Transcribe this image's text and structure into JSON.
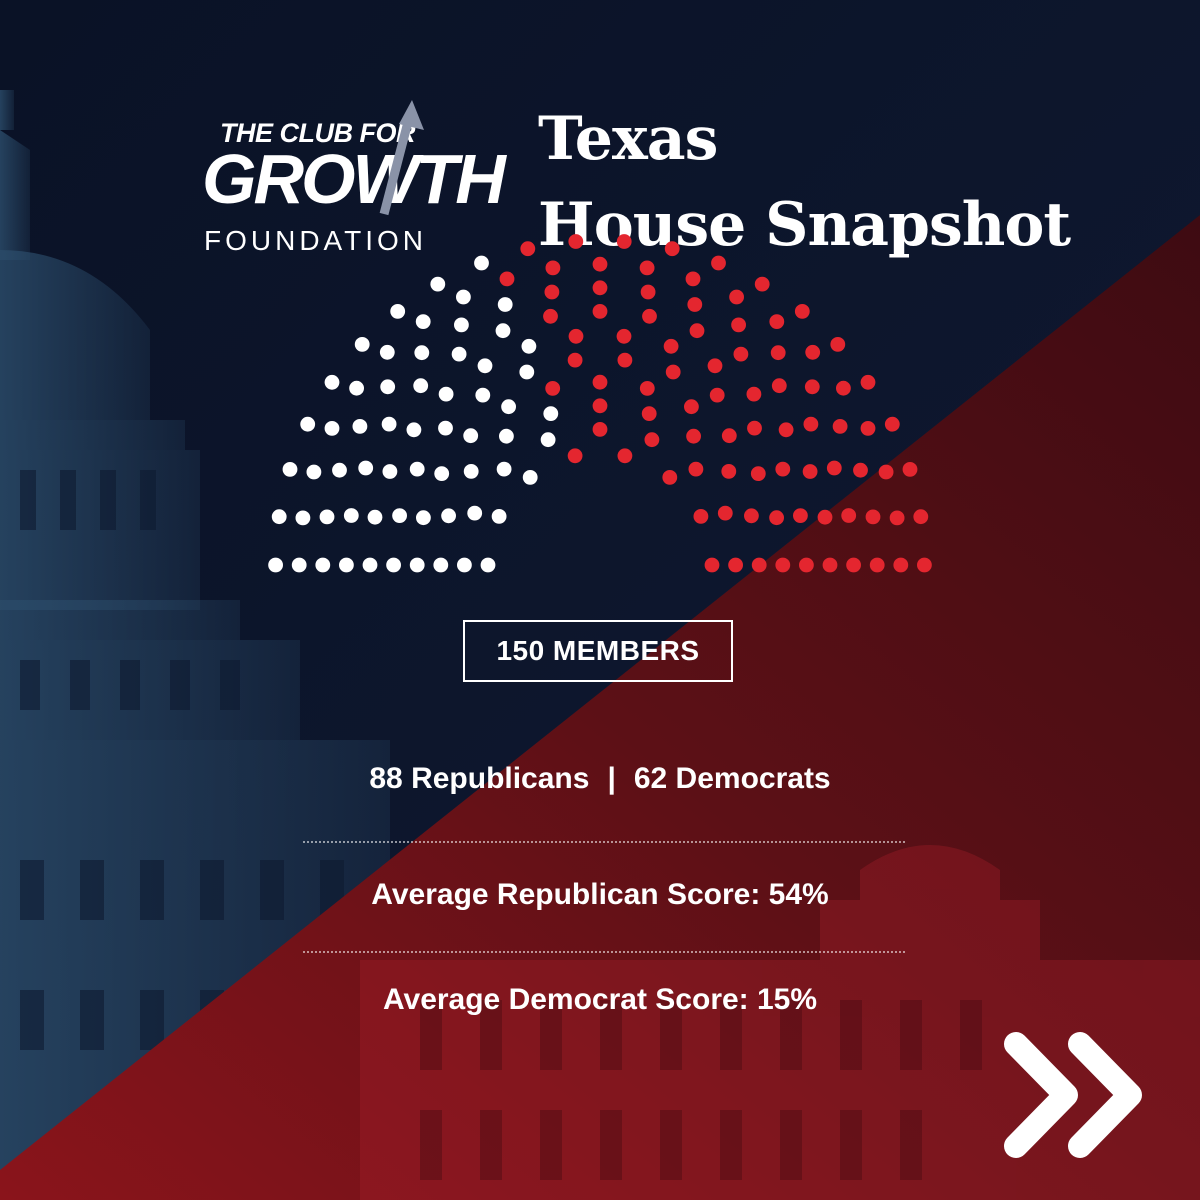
{
  "logo": {
    "line1": "THE CLUB FOR",
    "line2": "GROWTH",
    "line3": "FOUNDATION"
  },
  "title": {
    "line1": "Texas",
    "line2": "House Snapshot"
  },
  "chart_data": {
    "type": "parliament",
    "total_seats": 150,
    "series": [
      {
        "name": "Democrats",
        "value": 62,
        "color": "#ffffff"
      },
      {
        "name": "Republicans",
        "value": 88,
        "color": "#e4262f"
      }
    ]
  },
  "members_label": "150 MEMBERS",
  "stats": {
    "republicans": "88 Republicans",
    "separator": "|",
    "democrats": "62 Democrats",
    "avg_republican": "Average Republican Score: 54%",
    "avg_democrat": "Average Democrat Score: 15%"
  },
  "colors": {
    "navy": "#0b1428",
    "maroon": "#7a1218",
    "republican": "#e4262f",
    "democrat": "#ffffff"
  },
  "next_icon": "double-chevron-right-icon"
}
